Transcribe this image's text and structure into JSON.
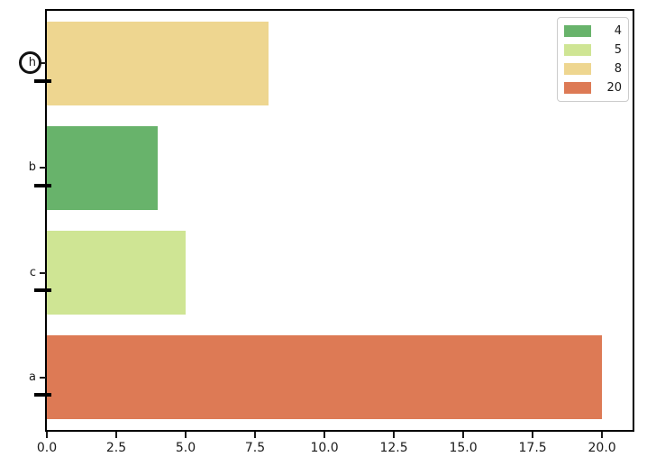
{
  "chart_data": {
    "type": "bar",
    "orientation": "horizontal",
    "title": "",
    "xlabel": "",
    "ylabel": "",
    "categories": [
      "h",
      "b",
      "c",
      "a"
    ],
    "values": [
      8,
      4,
      5,
      20
    ],
    "bar_colors": [
      "#eed690",
      "#68b36b",
      "#cfe594",
      "#dd7a55"
    ],
    "xlim": [
      0,
      21.1
    ],
    "xticks": [
      0,
      2.5,
      5,
      7.5,
      10,
      12.5,
      15,
      17.5,
      20
    ],
    "xtick_labels": [
      "0.0",
      "2.5",
      "5.0",
      "7.5",
      "10.0",
      "12.5",
      "15.0",
      "17.5",
      "20.0"
    ],
    "grid": false,
    "legend": {
      "position": "upper-right",
      "entries": [
        {
          "label": "4",
          "color": "#68b36b"
        },
        {
          "label": "5",
          "color": "#cfe594"
        },
        {
          "label": "8",
          "color": "#eed690"
        },
        {
          "label": "20",
          "color": "#dd7a55"
        }
      ]
    },
    "annotations": [
      {
        "type": "circle-marker",
        "on": "y-tick-label",
        "category": "h"
      },
      {
        "type": "bold-dash",
        "on": "y-axis",
        "categories": [
          "h",
          "b",
          "c",
          "a"
        ]
      }
    ]
  },
  "colors": {
    "background": "#ffffff",
    "spine": "#000000",
    "tick_label": "#1a1a1a",
    "legend_border": "#cccccc",
    "annotation": "#111111"
  }
}
